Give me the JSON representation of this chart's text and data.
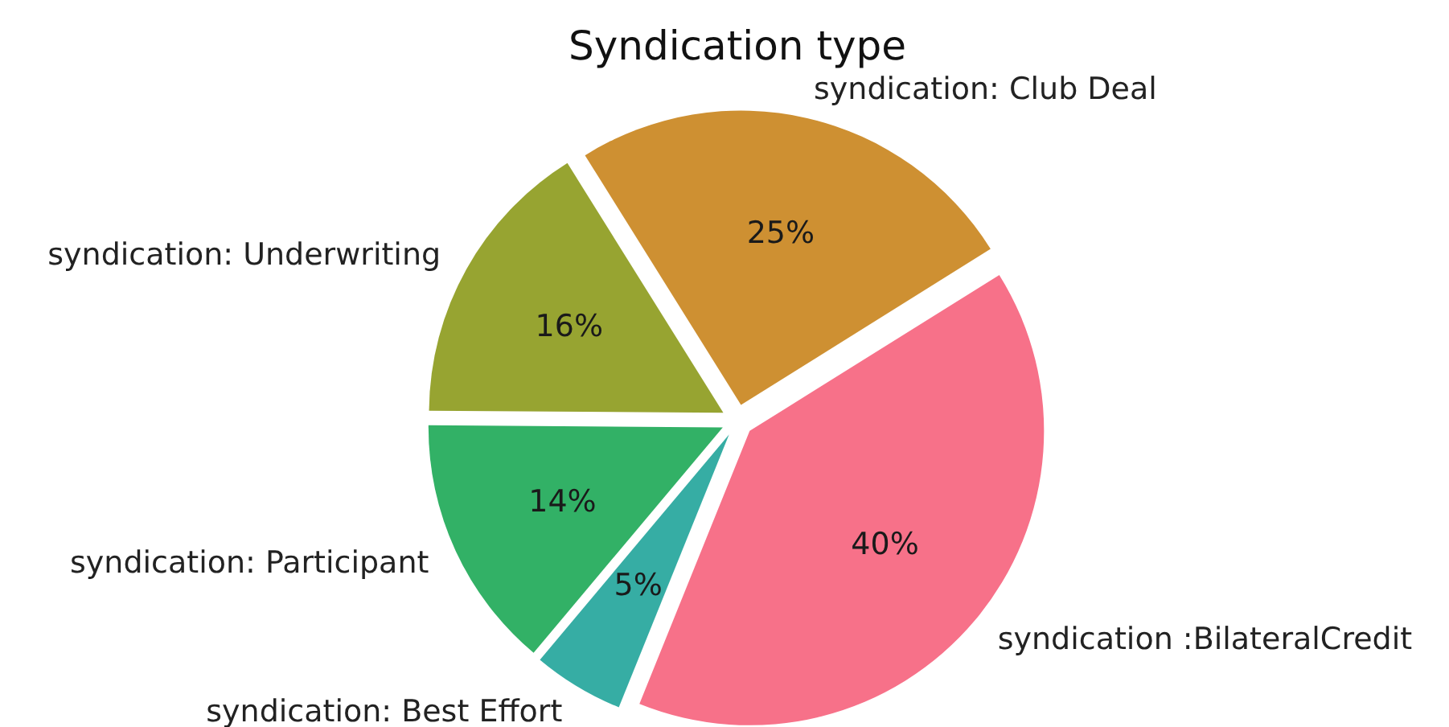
{
  "chart_data": {
    "type": "pie",
    "title": "Syndication type",
    "categories": [
      "syndication :BilateralCredit",
      "syndication: Club Deal",
      "syndication: Underwriting",
      "syndication: Participant",
      "syndication: Best Effort"
    ],
    "values": [
      40,
      25,
      16,
      14,
      5
    ],
    "colors": [
      "#f77189",
      "#ce9032",
      "#97a431",
      "#32b166",
      "#36ada4"
    ],
    "value_labels": [
      "40%",
      "25%",
      "16%",
      "14%",
      "5%"
    ]
  }
}
